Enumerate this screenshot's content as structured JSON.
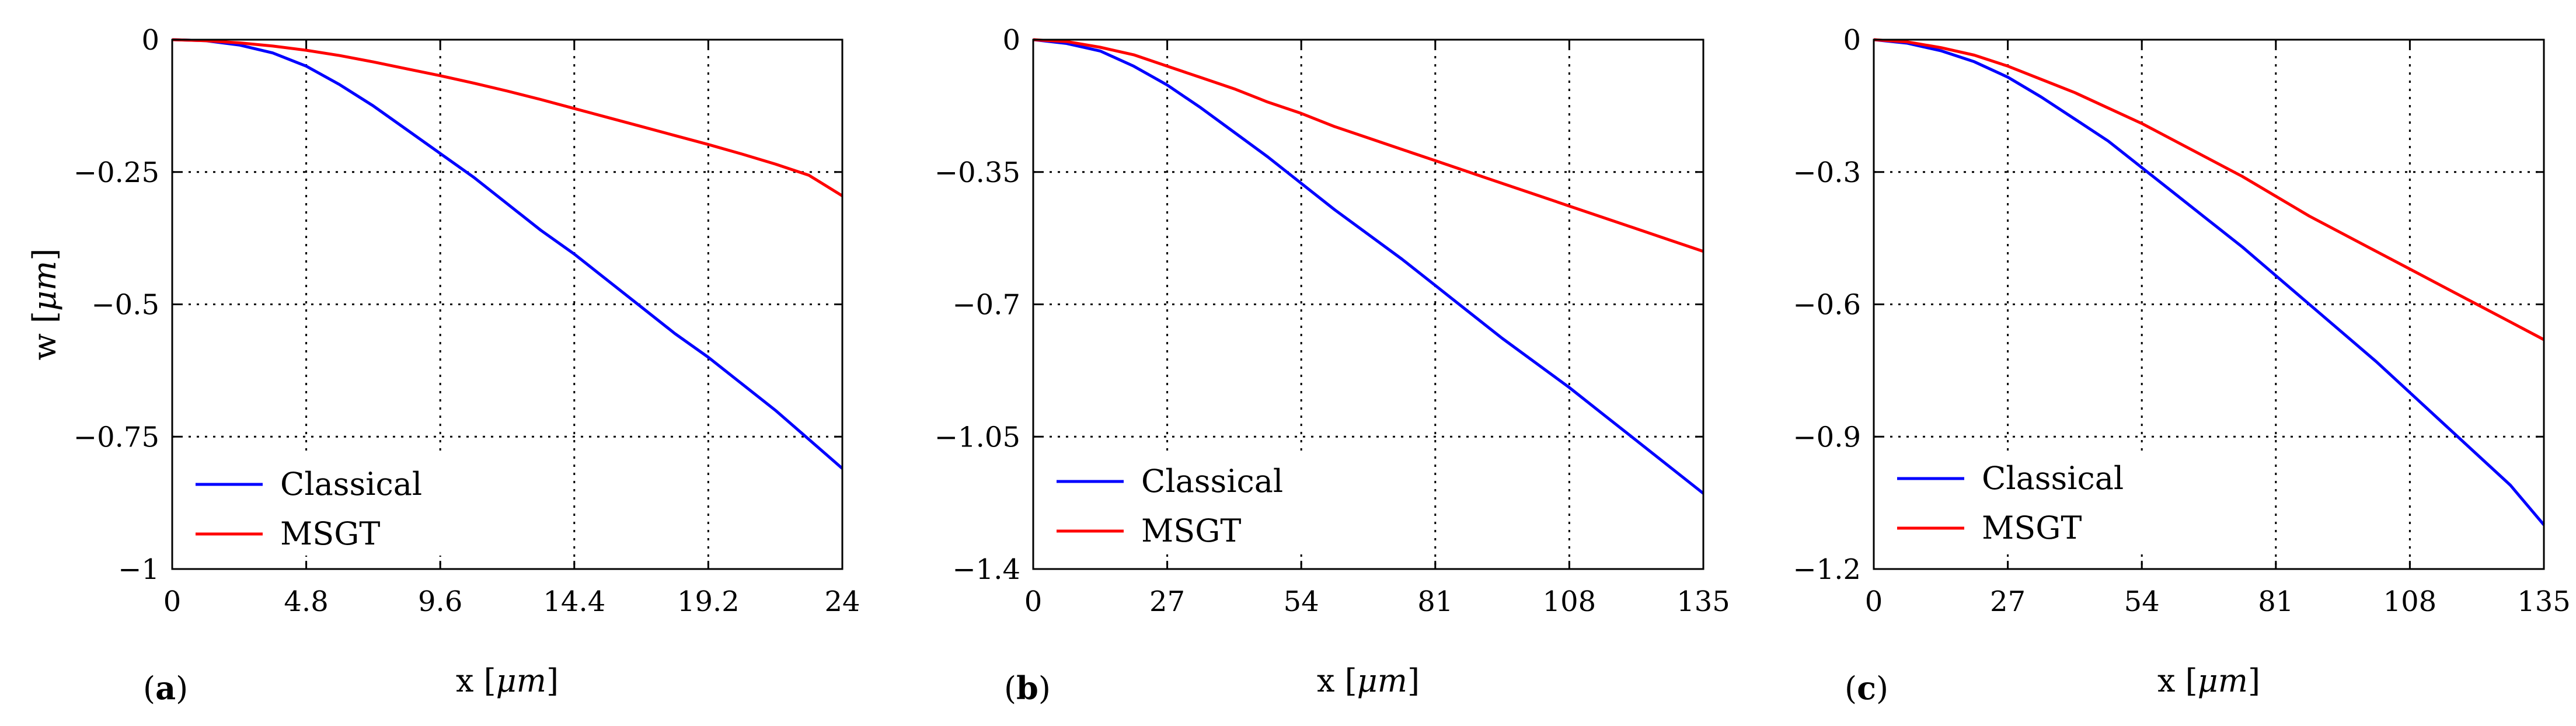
{
  "chart_data": [
    {
      "type": "line",
      "panel_label": "a",
      "xlabel": "x [μm]",
      "ylabel": "w [μm]",
      "xlim": [
        0,
        24
      ],
      "ylim": [
        -1,
        0
      ],
      "xticks": [
        0,
        4.8,
        9.6,
        14.4,
        19.2,
        24
      ],
      "xtick_labels": [
        "0",
        "4.8",
        "9.6",
        "14.4",
        "19.2",
        "24"
      ],
      "yticks": [
        0,
        -0.25,
        -0.5,
        -0.75,
        -1
      ],
      "ytick_labels": [
        "0",
        "−0.25",
        "−0.5",
        "−0.75",
        "−1"
      ],
      "grid": true,
      "legend_position": "bottom-left",
      "series": [
        {
          "name": "Classical",
          "color": "#0000ff",
          "x": [
            0,
            1.2,
            2.4,
            3.6,
            4.8,
            6,
            7.2,
            8.4,
            9.6,
            10.8,
            12,
            13.2,
            14.4,
            15.6,
            16.8,
            18,
            19.2,
            20.4,
            21.6,
            22.8,
            24
          ],
          "y": [
            0,
            -0.002,
            -0.01,
            -0.025,
            -0.05,
            -0.085,
            -0.125,
            -0.17,
            -0.215,
            -0.26,
            -0.31,
            -0.36,
            -0.405,
            -0.455,
            -0.505,
            -0.555,
            -0.6,
            -0.65,
            -0.7,
            -0.755,
            -0.81
          ]
        },
        {
          "name": "MSGT",
          "color": "#ff0000",
          "x": [
            0,
            1.2,
            2.4,
            3.6,
            4.8,
            6,
            7.2,
            8.4,
            9.6,
            10.8,
            12,
            13.2,
            14.4,
            15.6,
            16.8,
            18,
            19.2,
            20.4,
            21.6,
            22.8,
            24
          ],
          "y": [
            0,
            -0.002,
            -0.006,
            -0.012,
            -0.02,
            -0.03,
            -0.042,
            -0.055,
            -0.068,
            -0.082,
            -0.097,
            -0.113,
            -0.13,
            -0.147,
            -0.164,
            -0.181,
            -0.198,
            -0.216,
            -0.235,
            -0.256,
            -0.295
          ]
        }
      ]
    },
    {
      "type": "line",
      "panel_label": "b",
      "xlabel": "x [μm]",
      "ylabel": "",
      "xlim": [
        0,
        135
      ],
      "ylim": [
        -1.4,
        0
      ],
      "xticks": [
        0,
        27,
        54,
        81,
        108,
        135
      ],
      "xtick_labels": [
        "0",
        "27",
        "54",
        "81",
        "108",
        "135"
      ],
      "yticks": [
        0,
        -0.35,
        -0.7,
        -1.05,
        -1.4
      ],
      "ytick_labels": [
        "0",
        "−0.35",
        "−0.7",
        "−1.05",
        "−1.4"
      ],
      "grid": true,
      "legend_position": "bottom-left",
      "series": [
        {
          "name": "Classical",
          "color": "#0000ff",
          "x": [
            0,
            6.75,
            13.5,
            20.25,
            27,
            33.75,
            40.5,
            47.25,
            54,
            60.75,
            67.5,
            74.25,
            81,
            87.75,
            94.5,
            101.25,
            108,
            114.75,
            121.5,
            128.25,
            135
          ],
          "y": [
            0,
            -0.01,
            -0.03,
            -0.07,
            -0.12,
            -0.18,
            -0.245,
            -0.31,
            -0.38,
            -0.45,
            -0.515,
            -0.58,
            -0.65,
            -0.72,
            -0.79,
            -0.855,
            -0.92,
            -0.99,
            -1.06,
            -1.13,
            -1.2
          ]
        },
        {
          "name": "MSGT",
          "color": "#ff0000",
          "x": [
            0,
            6.75,
            13.5,
            20.25,
            27,
            33.75,
            40.5,
            47.25,
            54,
            60.75,
            67.5,
            74.25,
            81,
            87.75,
            94.5,
            101.25,
            108,
            114.75,
            121.5,
            128.25,
            135
          ],
          "y": [
            0,
            -0.005,
            -0.02,
            -0.04,
            -0.07,
            -0.1,
            -0.13,
            -0.165,
            -0.195,
            -0.23,
            -0.26,
            -0.29,
            -0.32,
            -0.35,
            -0.38,
            -0.41,
            -0.44,
            -0.47,
            -0.5,
            -0.53,
            -0.56
          ]
        }
      ]
    },
    {
      "type": "line",
      "panel_label": "c",
      "xlabel": "x [μm]",
      "ylabel": "",
      "xlim": [
        0,
        135
      ],
      "ylim": [
        -1.2,
        0
      ],
      "xticks": [
        0,
        27,
        54,
        81,
        108,
        135
      ],
      "xtick_labels": [
        "0",
        "27",
        "54",
        "81",
        "108",
        "135"
      ],
      "yticks": [
        0,
        -0.3,
        -0.6,
        -0.9,
        -1.2
      ],
      "ytick_labels": [
        "0",
        "−0.3",
        "−0.6",
        "−0.9",
        "−1.2"
      ],
      "grid": true,
      "legend_position": "bottom-left",
      "series": [
        {
          "name": "Classical",
          "color": "#0000ff",
          "x": [
            0,
            6.75,
            13.5,
            20.25,
            27,
            33.75,
            40.5,
            47.25,
            54,
            60.75,
            67.5,
            74.25,
            81,
            87.75,
            94.5,
            101.25,
            108,
            114.75,
            121.5,
            128.25,
            135
          ],
          "y": [
            0,
            -0.008,
            -0.025,
            -0.05,
            -0.085,
            -0.13,
            -0.18,
            -0.23,
            -0.29,
            -0.35,
            -0.41,
            -0.47,
            -0.535,
            -0.6,
            -0.665,
            -0.73,
            -0.8,
            -0.87,
            -0.94,
            -1.01,
            -1.1
          ]
        },
        {
          "name": "MSGT",
          "color": "#ff0000",
          "x": [
            0,
            6.75,
            13.5,
            20.25,
            27,
            33.75,
            40.5,
            47.25,
            54,
            60.75,
            67.5,
            74.25,
            81,
            87.75,
            94.5,
            101.25,
            108,
            114.75,
            121.5,
            128.25,
            135
          ],
          "y": [
            0,
            -0.005,
            -0.018,
            -0.035,
            -0.06,
            -0.09,
            -0.12,
            -0.155,
            -0.19,
            -0.23,
            -0.27,
            -0.31,
            -0.355,
            -0.4,
            -0.44,
            -0.48,
            -0.52,
            -0.56,
            -0.6,
            -0.64,
            -0.68
          ]
        }
      ]
    }
  ]
}
